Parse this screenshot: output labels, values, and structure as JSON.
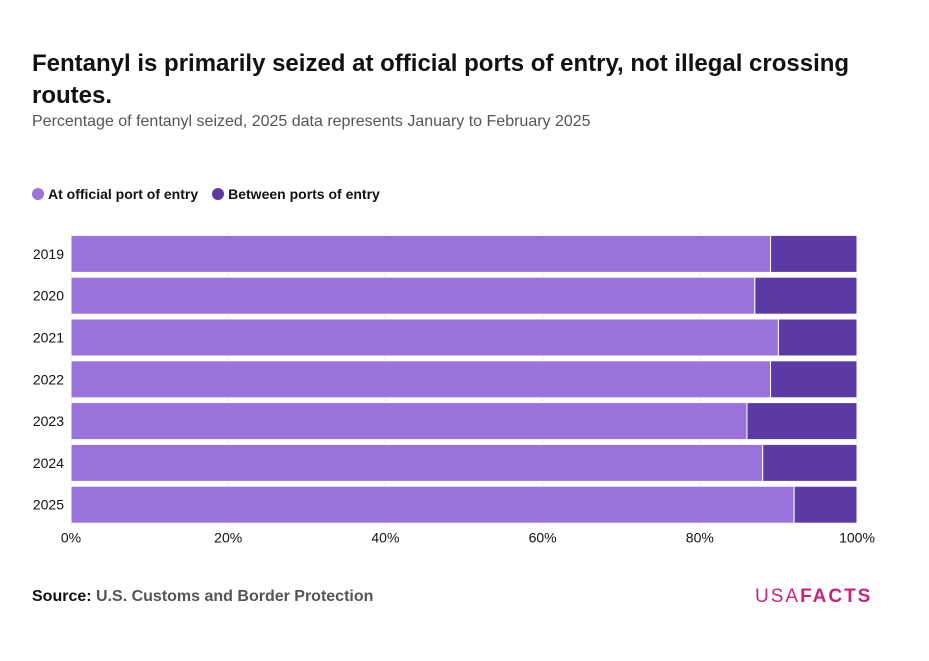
{
  "title": "Fentanyl is primarily seized at official ports of entry, not illegal crossing routes.",
  "subtitle": "Percentage of fentanyl seized, 2025 data represents January to February 2025",
  "colors": {
    "port": "#9a72dc",
    "between": "#5b3aa5",
    "brand": "#c6257d",
    "grid": "#e6e6e6"
  },
  "legend": [
    {
      "label": "At official port of entry",
      "color_key": "port"
    },
    {
      "label": "Between ports of entry",
      "color_key": "between"
    }
  ],
  "chart_data": {
    "type": "bar",
    "orientation": "horizontal",
    "stacked": true,
    "categories": [
      "2019",
      "2020",
      "2021",
      "2022",
      "2023",
      "2024",
      "2025"
    ],
    "series": [
      {
        "name": "At official port of entry",
        "values": [
          89,
          87,
          90,
          89,
          86,
          88,
          92
        ]
      },
      {
        "name": "Between ports of entry",
        "values": [
          11,
          13,
          10,
          11,
          14,
          12,
          8
        ]
      }
    ],
    "xlim": [
      0,
      100
    ],
    "xticks": [
      0,
      20,
      40,
      60,
      80,
      100
    ],
    "xtick_labels": [
      "0%",
      "20%",
      "40%",
      "60%",
      "80%",
      "100%"
    ],
    "xlabel": "",
    "ylabel": "",
    "grid": true,
    "legend_position": "top-left"
  },
  "source": {
    "label": "Source:",
    "text": "U.S. Customs and Border Protection"
  },
  "brand": {
    "part1": "USA",
    "part2": "FACTS"
  }
}
